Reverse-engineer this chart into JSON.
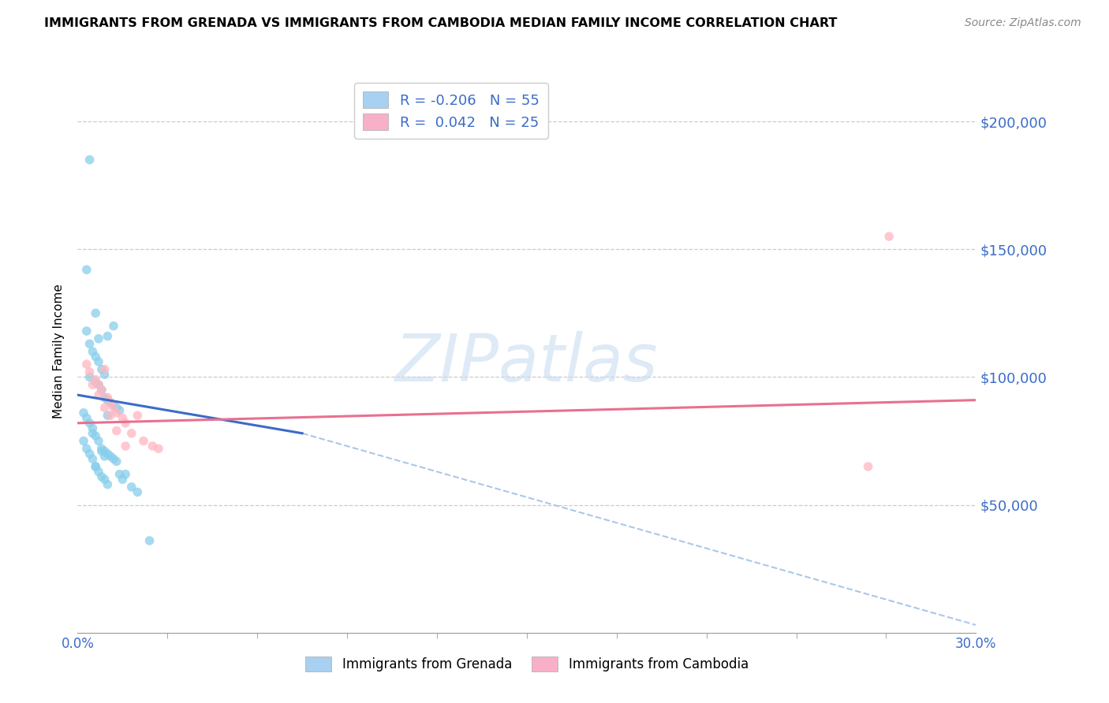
{
  "title": "IMMIGRANTS FROM GRENADA VS IMMIGRANTS FROM CAMBODIA MEDIAN FAMILY INCOME CORRELATION CHART",
  "source": "Source: ZipAtlas.com",
  "ylabel": "Median Family Income",
  "xlim": [
    0.0,
    0.3
  ],
  "ylim": [
    0,
    220000
  ],
  "ytick_positions": [
    50000,
    100000,
    150000,
    200000
  ],
  "ytick_labels_right": [
    "$50,000",
    "$100,000",
    "$150,000",
    "$200,000"
  ],
  "xtick_minor_positions": [
    0.03,
    0.06,
    0.09,
    0.12,
    0.15,
    0.18,
    0.21,
    0.24,
    0.27
  ],
  "grenada_color": "#87CEEB",
  "cambodia_color": "#FFB6C1",
  "grenada_line_color": "#3a6cc8",
  "cambodia_line_color": "#e87090",
  "dashed_line_color": "#aac8e8",
  "grid_color": "#cccccc",
  "background_color": "#ffffff",
  "legend_box_grenada": "#a8d0f0",
  "legend_box_cambodia": "#f8b0c8",
  "watermark_color": "#c8ddf0",
  "grenada_R": "-0.206",
  "grenada_N": "55",
  "cambodia_R": "0.042",
  "cambodia_N": "25",
  "grenada_label": "Immigrants from Grenada",
  "cambodia_label": "Immigrants from Cambodia",
  "grenada_line_x0": 0.0,
  "grenada_line_x1": 0.075,
  "grenada_line_y0": 93000,
  "grenada_line_y1": 78000,
  "dashed_line_x0": 0.075,
  "dashed_line_x1": 0.3,
  "dashed_line_y0": 78000,
  "dashed_line_y1": 3000,
  "cambodia_line_x0": 0.0,
  "cambodia_line_x1": 0.3,
  "cambodia_line_y0": 82000,
  "cambodia_line_y1": 91000,
  "grenada_points_x": [
    0.004,
    0.003,
    0.006,
    0.003,
    0.004,
    0.005,
    0.006,
    0.007,
    0.007,
    0.008,
    0.009,
    0.01,
    0.004,
    0.006,
    0.007,
    0.008,
    0.009,
    0.01,
    0.011,
    0.012,
    0.013,
    0.014,
    0.01,
    0.012,
    0.002,
    0.003,
    0.004,
    0.005,
    0.005,
    0.006,
    0.007,
    0.008,
    0.009,
    0.01,
    0.011,
    0.012,
    0.013,
    0.006,
    0.007,
    0.008,
    0.009,
    0.01,
    0.002,
    0.003,
    0.004,
    0.005,
    0.006,
    0.014,
    0.015,
    0.018,
    0.02,
    0.016,
    0.024,
    0.008,
    0.009
  ],
  "grenada_points_y": [
    185000,
    142000,
    125000,
    118000,
    113000,
    110000,
    108000,
    115000,
    106000,
    103000,
    101000,
    116000,
    100000,
    98000,
    97000,
    95000,
    92000,
    91000,
    90000,
    89000,
    88000,
    87000,
    85000,
    120000,
    86000,
    84000,
    82000,
    80000,
    78000,
    77000,
    75000,
    72000,
    71000,
    70000,
    69000,
    68000,
    67000,
    65000,
    63000,
    61000,
    60000,
    58000,
    75000,
    72000,
    70000,
    68000,
    65000,
    62000,
    60000,
    57000,
    55000,
    62000,
    36000,
    71000,
    69000
  ],
  "cambodia_points_x": [
    0.003,
    0.004,
    0.006,
    0.007,
    0.008,
    0.009,
    0.01,
    0.011,
    0.012,
    0.013,
    0.015,
    0.016,
    0.018,
    0.02,
    0.022,
    0.025,
    0.027,
    0.005,
    0.007,
    0.009,
    0.011,
    0.013,
    0.016,
    0.271,
    0.264
  ],
  "cambodia_points_y": [
    105000,
    102000,
    99000,
    97000,
    95000,
    103000,
    92000,
    90000,
    88000,
    86000,
    84000,
    82000,
    78000,
    85000,
    75000,
    73000,
    72000,
    97000,
    93000,
    88000,
    85000,
    79000,
    73000,
    155000,
    65000
  ]
}
